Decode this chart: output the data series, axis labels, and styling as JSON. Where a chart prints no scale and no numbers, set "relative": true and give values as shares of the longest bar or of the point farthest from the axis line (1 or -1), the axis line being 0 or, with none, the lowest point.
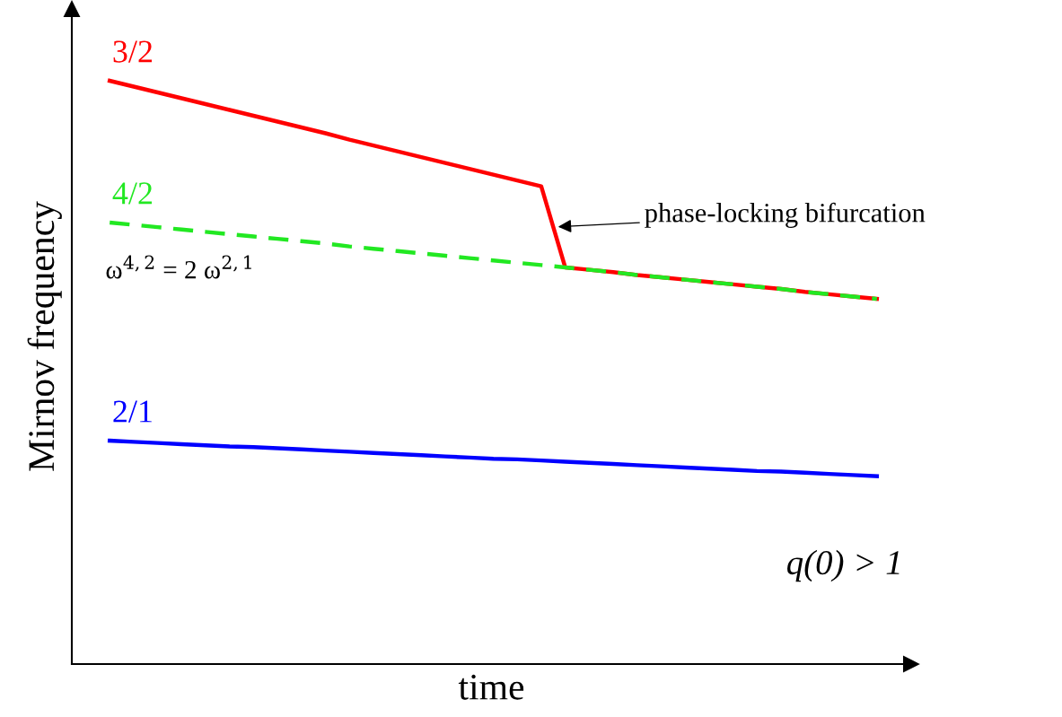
{
  "chart_data": {
    "type": "line",
    "relative": true,
    "xlabel": "time",
    "ylabel": "Mirnov frequency",
    "categories": [
      null,
      null,
      null,
      null,
      null,
      null,
      null,
      null,
      null,
      null,
      null,
      null,
      null,
      null,
      null,
      null,
      null,
      null,
      null,
      null,
      null,
      null,
      null,
      null,
      null,
      null,
      null,
      null,
      null,
      null,
      null,
      null,
      null
    ],
    "series": [
      {
        "name": "3/2",
        "color": "#ff0000",
        "line_style": "solid",
        "values": [
          1.0,
          0.99,
          0.98,
          0.97,
          0.96,
          0.95,
          0.94,
          0.93,
          0.92,
          0.91,
          0.899,
          0.889,
          0.879,
          0.869,
          0.859,
          0.849,
          0.839,
          0.829,
          0.819,
          0.68,
          0.676,
          0.672,
          0.667,
          0.663,
          0.659,
          0.655,
          0.651,
          0.647,
          0.643,
          0.638,
          0.634,
          0.63,
          0.626
        ]
      },
      {
        "name": "4/2",
        "color": "#22e822",
        "line_style": "dashed",
        "values": [
          0.757,
          0.753,
          0.749,
          0.745,
          0.741,
          0.737,
          0.733,
          0.729,
          0.725,
          0.721,
          0.716,
          0.712,
          0.708,
          0.704,
          0.7,
          0.696,
          0.692,
          0.688,
          0.684,
          0.68,
          0.676,
          0.672,
          0.667,
          0.663,
          0.659,
          0.655,
          0.651,
          0.647,
          0.643,
          0.638,
          0.634,
          0.63,
          0.626
        ]
      },
      {
        "name": "2/1",
        "color": "#0000ff",
        "line_style": "solid",
        "values": [
          0.383,
          0.381,
          0.379,
          0.377,
          0.375,
          0.373,
          0.372,
          0.37,
          0.368,
          0.366,
          0.364,
          0.362,
          0.36,
          0.358,
          0.356,
          0.354,
          0.352,
          0.351,
          0.349,
          0.347,
          0.345,
          0.343,
          0.341,
          0.339,
          0.337,
          0.335,
          0.333,
          0.331,
          0.33,
          0.328,
          0.326,
          0.324,
          0.322
        ]
      }
    ],
    "annotations": [
      "phase-locking bifurcation",
      "ω$^{4,2}$ = 2 ω$^{2,1}$",
      "q(0) > 1"
    ],
    "marker": "none"
  }
}
